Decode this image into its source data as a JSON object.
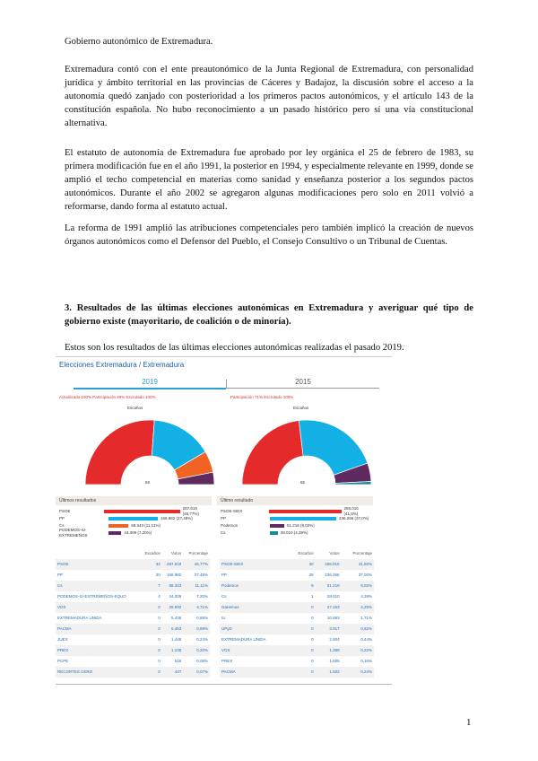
{
  "doc": {
    "p0": "Gobierno autonómico de Extremadura.",
    "p1": "Extremadura contó con el ente preautonómico de la Junta Regional de Extremadura, con personalidad jurídica y ámbito territorial en las provincias de Cáceres y Badajoz, la discusión sobre el acceso a la autonomía quedó zanjado con posterioridad a los primeros pactos autonómicos, y el artículo 143 de la constitución española. No hubo reconocimiento a un pasado histórico pero sí una vía constitucional alternativa.",
    "p2": "El estatuto de autonomía de Extremadura fue aprobado por ley orgánica el 25 de febrero de 1983, su primera modificación fue en el año 1991, la posterior en 1994, y especialmente relevante en 1999, donde se amplió el techo competencial en materias como sanidad y enseñanza posterior a los segundos pactos autonómicos. Durante el año 2002 se agregaron algunas modificaciones pero solo en 2011 volvió a reformarse, dando forma al estatuto actual.",
    "p3": "La reforma de 1991 amplió las atribuciones competenciales pero también implicó la creación de nuevos órganos autonómicos como el Defensor del Pueblo, el Consejo Consultivo o un Tribunal de Cuentas.",
    "heading": "3. Resultados de las últimas elecciones autonómicas en Extremadura y averiguar qué tipo de gobierno existe (mayoritario, de coalición o de minoría).",
    "p4": "Estos son los resultados de las últimas elecciones autonómicas realizadas el pasado 2019.",
    "page_number": "1"
  },
  "embedded": {
    "brand": "Elecciones Extremadura / Extremadura",
    "tabs": [
      "2019",
      "2015"
    ],
    "stats_2019": "Actualizado 100%   Participación 69%   Escrutado 100%",
    "stats_2015": "Participación 71%   Escrutado 100%",
    "gauge_label_2019": "Escaños",
    "gauge_label_2015": "Escaños",
    "majority_2019": "65",
    "majority_2015": "65",
    "panel_2019": "Últimos resultados",
    "panel_2015": "Último resultado",
    "colors": {
      "psoe": "#e42a2a",
      "pp": "#13b0e6",
      "cs": "#f06322",
      "podemos": "#5e2a5f",
      "iu": "#168a99"
    },
    "bars_2019": [
      {
        "label": "PSOE",
        "text": "287.619 (46,77%)",
        "pct": 46.77,
        "color": "#e42a2a"
      },
      {
        "label": "PP",
        "text": "168.982 (27,48%)",
        "pct": 27.48,
        "color": "#13b0e6"
      },
      {
        "label": "Cs",
        "text": "68.343 (11,11%)",
        "pct": 11.11,
        "color": "#f06322"
      },
      {
        "label": "PODEMOS-IU-EXTREMEÑOS",
        "text": "44.309 (7,20%)",
        "pct": 7.2,
        "color": "#5e2a5f"
      }
    ],
    "bars_2015": [
      {
        "label": "PSOE-SIEX",
        "text": "265.015 (41,5%)",
        "pct": 41.5,
        "color": "#e42a2a"
      },
      {
        "label": "PP",
        "text": "236.266 (37,0%)",
        "pct": 37.0,
        "color": "#13b0e6"
      },
      {
        "label": "Podemos",
        "text": "51.216 (8,02%)",
        "pct": 8.02,
        "color": "#5e2a5f"
      },
      {
        "label": "Cs",
        "text": "28.010 (4,39%)",
        "pct": 4.39,
        "color": "#168a99"
      }
    ],
    "seats_2019": [
      34,
      20,
      7,
      4
    ],
    "seats_2015": [
      30,
      28,
      6,
      1
    ],
    "columns": [
      "Escaños",
      "Votos",
      "Porcentaje"
    ],
    "table_2019": [
      [
        "PSOE",
        "34",
        "287.619",
        "46,77%"
      ],
      [
        "PP",
        "20",
        "168.982",
        "27,48%"
      ],
      [
        "Cs",
        "7",
        "68.343",
        "11,11%"
      ],
      [
        "PODEMOS-IU-EXTREMEÑOS-EQUO",
        "4",
        "44.309",
        "7,20%"
      ],
      [
        "VOX",
        "0",
        "28.992",
        "4,71%"
      ],
      [
        "EXTREMADURA UNIDA",
        "0",
        "5.436",
        "0,88%"
      ],
      [
        "PACMA",
        "0",
        "5.453",
        "0,89%"
      ],
      [
        "JUEX",
        "0",
        "1.448",
        "0,24%"
      ],
      [
        "PREX",
        "0",
        "1.235",
        "0,20%"
      ],
      [
        "PCPE",
        "0",
        "518",
        "0,08%"
      ],
      [
        "RECORTES CERO",
        "0",
        "447",
        "0,07%"
      ]
    ],
    "table_2015": [
      [
        "PSOE-SIEX",
        "30",
        "265.015",
        "41,50%"
      ],
      [
        "PP",
        "28",
        "236.266",
        "37,00%"
      ],
      [
        "Podemos",
        "6",
        "51.216",
        "8,02%"
      ],
      [
        "Cs",
        "1",
        "28.010",
        "4,39%"
      ],
      [
        "Ganemos",
        "0",
        "27.153",
        "4,25%"
      ],
      [
        "IU",
        "0",
        "10.893",
        "1,71%"
      ],
      [
        "UPyD",
        "0",
        "3.917",
        "0,62%"
      ],
      [
        "EXTREMADURA UNIDA",
        "0",
        "2.804",
        "0,44%"
      ],
      [
        "VOX",
        "0",
        "1.398",
        "0,22%"
      ],
      [
        "PREX",
        "0",
        "1.005",
        "0,16%"
      ],
      [
        "PACMA",
        "0",
        "1.502",
        "0,24%"
      ]
    ]
  }
}
